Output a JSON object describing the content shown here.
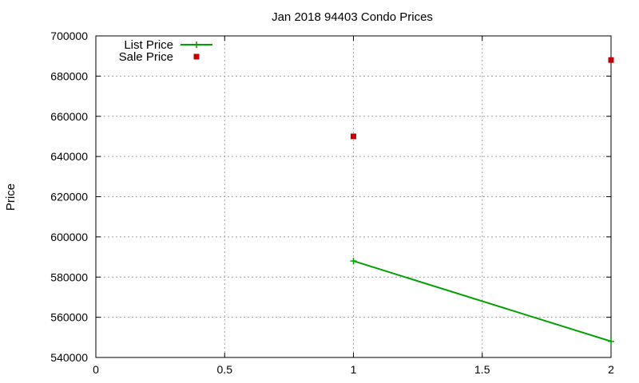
{
  "chart_data": {
    "type": "line",
    "title": "Jan 2018 94403 Condo Prices",
    "xlabel": "",
    "ylabel": "Price",
    "xlim": [
      0,
      2
    ],
    "ylim": [
      540000,
      700000
    ],
    "x_ticks": [
      "0",
      "0.5",
      "1",
      "1.5",
      "2"
    ],
    "x_tick_values": [
      0,
      0.5,
      1,
      1.5,
      2
    ],
    "y_ticks": [
      "540000",
      "560000",
      "580000",
      "600000",
      "620000",
      "640000",
      "660000",
      "680000",
      "700000"
    ],
    "y_tick_values": [
      540000,
      560000,
      580000,
      600000,
      620000,
      640000,
      660000,
      680000,
      700000
    ],
    "grid": true,
    "legend_position": "top-left",
    "series": [
      {
        "name": "List Price",
        "style": "line-plus",
        "color": "#00a000",
        "x": [
          1,
          2
        ],
        "y": [
          588000,
          548000
        ]
      },
      {
        "name": "Sale Price",
        "style": "square-points",
        "color": "#c00000",
        "x": [
          1,
          2
        ],
        "y": [
          650000,
          688000
        ]
      }
    ]
  }
}
